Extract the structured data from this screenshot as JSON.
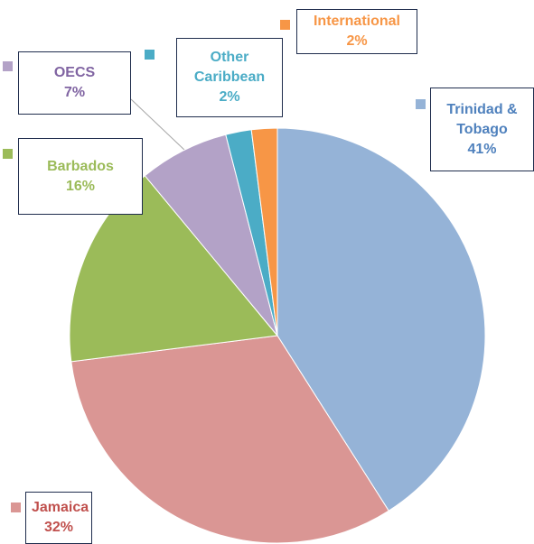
{
  "chart_data": {
    "type": "pie",
    "categories": [
      "Trinidad & Tobago",
      "Jamaica",
      "Barbados",
      "OECS",
      "Other Caribbean",
      "International"
    ],
    "values": [
      41,
      32,
      16,
      7,
      2,
      2
    ],
    "value_labels": [
      "41%",
      "32%",
      "16%",
      "7%",
      "2%",
      "2%"
    ],
    "colors": [
      "#95b3d7",
      "#da9694",
      "#9bbb59",
      "#b3a2c7",
      "#4bacc6",
      "#f79646"
    ],
    "label_colors": [
      "#4f81bd",
      "#c0504d",
      "#9bbb59",
      "#8064a2",
      "#4bacc6",
      "#f79646"
    ]
  }
}
